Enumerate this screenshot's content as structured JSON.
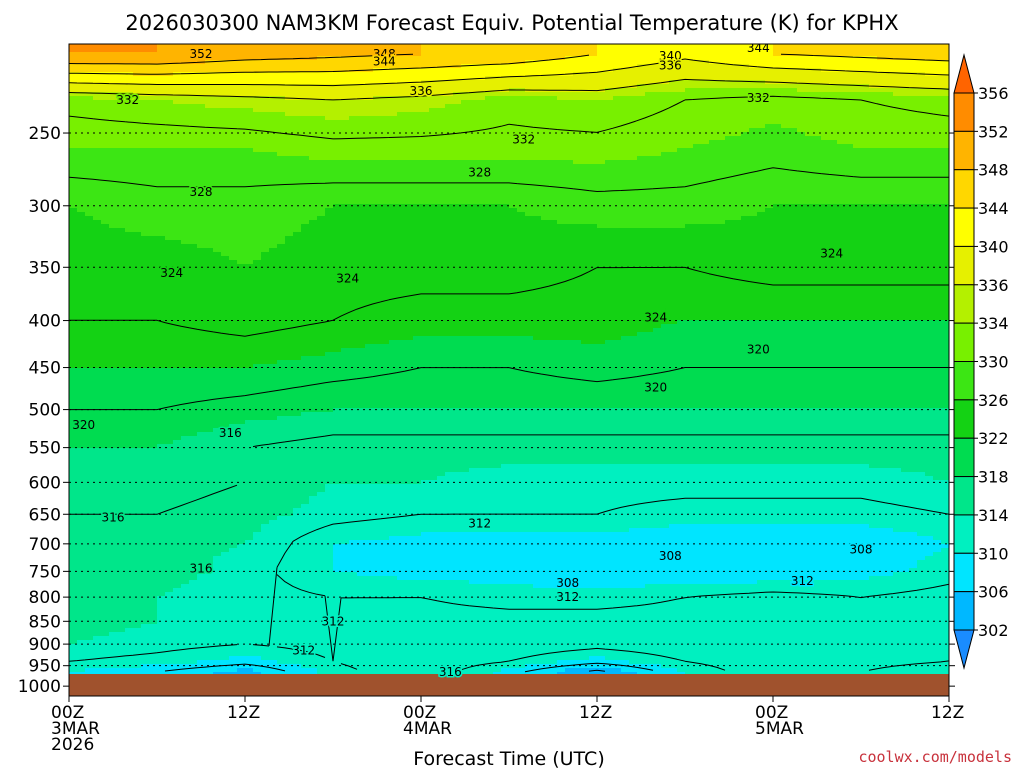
{
  "chart_data": {
    "type": "heatmap",
    "title": "2026030300 NAM3KM Forecast Equiv. Potential Temperature (K) for KPHX",
    "xlabel": "Forecast Time (UTC)",
    "ylabel": "",
    "credit": "coolwx.com/models",
    "x_ticks": [
      {
        "hour": 0,
        "lines": [
          "00Z",
          "3MAR",
          "2026"
        ]
      },
      {
        "hour": 12,
        "lines": [
          "12Z"
        ]
      },
      {
        "hour": 24,
        "lines": [
          "00Z",
          "4MAR"
        ]
      },
      {
        "hour": 36,
        "lines": [
          "12Z"
        ]
      },
      {
        "hour": 48,
        "lines": [
          "00Z",
          "5MAR"
        ]
      },
      {
        "hour": 60,
        "lines": [
          "12Z"
        ]
      }
    ],
    "xlim_hours": [
      0,
      60
    ],
    "y_ticks_hpa": [
      250,
      300,
      350,
      400,
      450,
      500,
      550,
      600,
      650,
      700,
      750,
      800,
      850,
      900,
      950,
      1000
    ],
    "y_scale": "pressure (hPa), log, inverted",
    "ylim_hpa": [
      200,
      1025
    ],
    "ground_pressure_hpa": 970,
    "gridlines": "dotted at each y tick",
    "colorbar": {
      "levels": [
        302,
        306,
        310,
        314,
        318,
        322,
        326,
        330,
        334,
        336,
        340,
        344,
        348,
        352,
        356
      ],
      "fill_colors": [
        "#1a8cff",
        "#00b8ff",
        "#00e5ff",
        "#00f0c0",
        "#00e68a",
        "#00dc50",
        "#14d214",
        "#3ce614",
        "#78f000",
        "#b4f000",
        "#e6f000",
        "#ffff00",
        "#ffd700",
        "#ffb400",
        "#ff8c00",
        "#ff6400"
      ]
    },
    "contour_levels": [
      304,
      308,
      312,
      316,
      320,
      324,
      328,
      332,
      336,
      340,
      344,
      348,
      352
    ],
    "contour_labels": [
      {
        "value": "352",
        "hour": 9.0,
        "hpa": 205
      },
      {
        "value": "348",
        "hour": 21.5,
        "hpa": 205
      },
      {
        "value": "344",
        "hour": 21.5,
        "hpa": 209
      },
      {
        "value": "340",
        "hour": 41.0,
        "hpa": 206
      },
      {
        "value": "336",
        "hour": 41.0,
        "hpa": 211
      },
      {
        "value": "344",
        "hour": 47.0,
        "hpa": 202
      },
      {
        "value": "336",
        "hour": 24.0,
        "hpa": 225
      },
      {
        "value": "332",
        "hour": 4.0,
        "hpa": 230
      },
      {
        "value": "332",
        "hour": 31.0,
        "hpa": 254
      },
      {
        "value": "332",
        "hour": 47.0,
        "hpa": 229
      },
      {
        "value": "328",
        "hour": 28.0,
        "hpa": 276
      },
      {
        "value": "328",
        "hour": 9.0,
        "hpa": 290
      },
      {
        "value": "324",
        "hour": 7.0,
        "hpa": 355
      },
      {
        "value": "324",
        "hour": 19.0,
        "hpa": 360
      },
      {
        "value": "324",
        "hour": 52.0,
        "hpa": 338
      },
      {
        "value": "324",
        "hour": 40.0,
        "hpa": 397
      },
      {
        "value": "320",
        "hour": 47.0,
        "hpa": 430
      },
      {
        "value": "320",
        "hour": 40.0,
        "hpa": 473
      },
      {
        "value": "320",
        "hour": 1.0,
        "hpa": 520
      },
      {
        "value": "316",
        "hour": 11.0,
        "hpa": 530
      },
      {
        "value": "316",
        "hour": 3.0,
        "hpa": 655
      },
      {
        "value": "316",
        "hour": 9.0,
        "hpa": 745
      },
      {
        "value": "312",
        "hour": 28.0,
        "hpa": 665
      },
      {
        "value": "308",
        "hour": 41.0,
        "hpa": 722
      },
      {
        "value": "308",
        "hour": 54.0,
        "hpa": 710
      },
      {
        "value": "308",
        "hour": 34.0,
        "hpa": 772
      },
      {
        "value": "312",
        "hour": 34.0,
        "hpa": 800
      },
      {
        "value": "312",
        "hour": 50.0,
        "hpa": 768
      },
      {
        "value": "312",
        "hour": 18.0,
        "hpa": 850
      },
      {
        "value": "312",
        "hour": 16.0,
        "hpa": 915
      },
      {
        "value": "316",
        "hour": 26.0,
        "hpa": 965
      }
    ],
    "profile": {
      "hours": [
        0,
        6,
        12,
        18,
        24,
        30,
        36,
        42,
        48,
        54,
        60
      ],
      "theta_e_by_level": [
        {
          "hpa": 205,
          "values": [
            352,
            352,
            350,
            349,
            348,
            347,
            344,
            341,
            344,
            345,
            346
          ]
        },
        {
          "hpa": 230,
          "values": [
            333,
            334,
            335,
            336,
            335,
            333,
            334,
            332,
            331,
            332,
            333
          ]
        },
        {
          "hpa": 260,
          "values": [
            330,
            330,
            330,
            331,
            331,
            331,
            331,
            330,
            329,
            330,
            330
          ]
        },
        {
          "hpa": 300,
          "values": [
            326,
            327,
            327,
            326,
            326,
            326,
            327,
            327,
            326,
            326,
            326
          ]
        },
        {
          "hpa": 350,
          "values": [
            325,
            325,
            326,
            325,
            325,
            325,
            324,
            324,
            325,
            325,
            325
          ]
        },
        {
          "hpa": 400,
          "values": [
            324,
            324,
            325,
            324,
            323,
            323,
            323,
            322,
            322,
            322,
            322
          ]
        },
        {
          "hpa": 450,
          "values": [
            322,
            322,
            322,
            321,
            320,
            320,
            321,
            320,
            320,
            320,
            320
          ]
        },
        {
          "hpa": 500,
          "values": [
            320,
            320,
            319,
            318,
            318,
            318,
            318,
            318,
            318,
            318,
            318
          ]
        },
        {
          "hpa": 550,
          "values": [
            318,
            318,
            316,
            315,
            315,
            315,
            315,
            315,
            315,
            315,
            315
          ]
        },
        {
          "hpa": 600,
          "values": [
            317,
            317,
            316,
            314,
            314,
            313,
            313,
            313,
            313,
            313,
            314
          ]
        },
        {
          "hpa": 650,
          "values": [
            316,
            316,
            315,
            313,
            312,
            312,
            312,
            311,
            311,
            311,
            312
          ]
        },
        {
          "hpa": 700,
          "values": [
            315,
            315,
            314,
            310,
            309,
            309,
            309,
            308,
            308,
            308,
            310
          ]
        },
        {
          "hpa": 750,
          "values": [
            315,
            315,
            313,
            310,
            309,
            309,
            308,
            308,
            308,
            309,
            311
          ]
        },
        {
          "hpa": 800,
          "values": [
            315,
            314,
            313,
            312,
            312,
            311,
            311,
            312,
            313,
            312,
            313
          ]
        },
        {
          "hpa": 850,
          "values": [
            315,
            314,
            312,
            312,
            313,
            313,
            313,
            313,
            313,
            313,
            313
          ]
        },
        {
          "hpa": 900,
          "values": [
            314,
            313,
            312,
            313,
            314,
            314,
            313,
            314,
            314,
            313,
            313
          ]
        },
        {
          "hpa": 940,
          "values": [
            312,
            311,
            309,
            312,
            314,
            312,
            309,
            312,
            314,
            313,
            312
          ]
        },
        {
          "hpa": 965,
          "values": [
            310,
            308,
            305,
            311,
            314,
            309,
            303,
            310,
            314,
            312,
            310
          ]
        }
      ]
    }
  }
}
